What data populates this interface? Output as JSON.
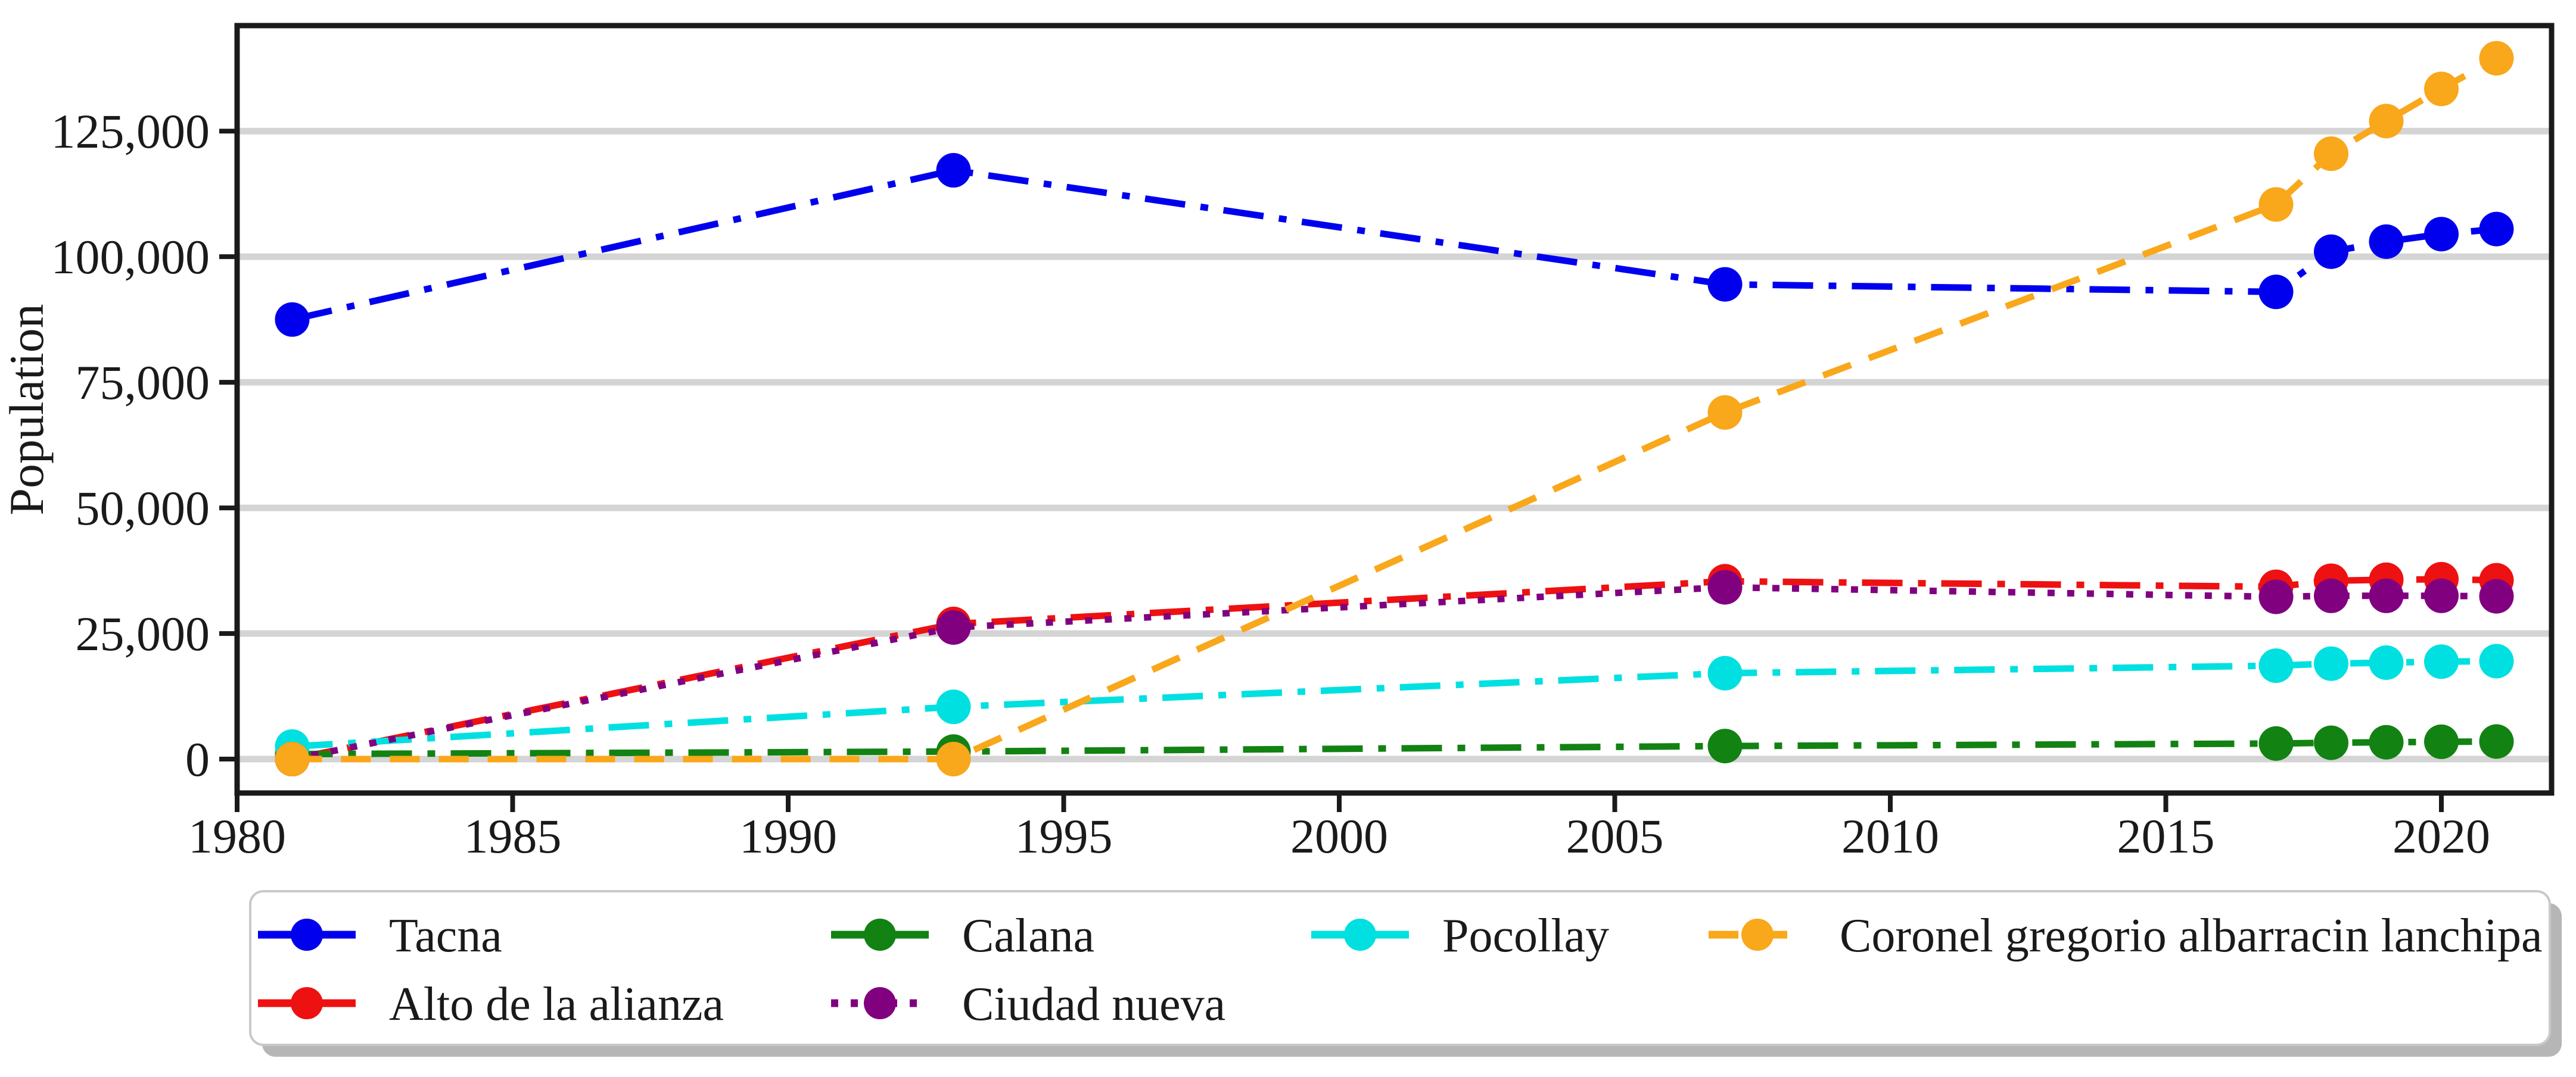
{
  "chart_data": {
    "type": "line",
    "title": "",
    "xlabel": "",
    "ylabel": "Population",
    "x": [
      1981,
      1993,
      2007,
      2017,
      2018,
      2019,
      2020,
      2021
    ],
    "xlim": [
      1980,
      2022
    ],
    "ylim": [
      -6750,
      146000
    ],
    "x_ticks": [
      1980,
      1985,
      1990,
      1995,
      2000,
      2005,
      2010,
      2015,
      2020
    ],
    "x_tick_labels": [
      "1980",
      "1985",
      "1990",
      "1995",
      "2000",
      "2005",
      "2010",
      "2015",
      "2020"
    ],
    "y_ticks": [
      0,
      25000,
      50000,
      75000,
      100000,
      125000
    ],
    "y_tick_labels": [
      "0",
      "25,000",
      "50,000",
      "75,000",
      "100,000",
      "125,000"
    ],
    "grid": "horizontal-only",
    "grid_color": "#d4d4d4",
    "spine_color": "#1a1a1a",
    "legend_position": "bottom",
    "series": [
      {
        "name": "Tacna",
        "color": "#0000EE",
        "linestyle": "dashdot",
        "values": [
          87500,
          117200,
          94500,
          93000,
          101000,
          103000,
          104500,
          105500
        ]
      },
      {
        "name": "Alto de la alianza",
        "color": "#EE1111",
        "linestyle": "dashdot",
        "values": [
          0,
          26900,
          35400,
          34300,
          35500,
          35700,
          35800,
          35600
        ]
      },
      {
        "name": "Calana",
        "color": "#128212",
        "linestyle": "dashdot",
        "values": [
          1000,
          1500,
          2600,
          3100,
          3250,
          3350,
          3450,
          3500
        ]
      },
      {
        "name": "Pocollay",
        "color": "#00E0E0",
        "linestyle": "dashdot",
        "values": [
          2500,
          10400,
          17100,
          18600,
          19000,
          19200,
          19400,
          19500
        ]
      },
      {
        "name": "Ciudad nueva",
        "color": "#800080",
        "linestyle": "dotted",
        "values": [
          0,
          26200,
          34200,
          32300,
          32500,
          32500,
          32500,
          32400
        ]
      },
      {
        "name": "Coronel gregorio albarracin lanchipa",
        "color": "#F9A71B",
        "linestyle": "dashed",
        "values": [
          0,
          0,
          69000,
          110400,
          120500,
          127000,
          133400,
          139500
        ]
      }
    ],
    "legend_entries": [
      {
        "label": "Tacna",
        "series": "Tacna",
        "linestyle": "solid",
        "row": 0,
        "col": 0
      },
      {
        "label": "Alto de la alianza",
        "series": "Alto de la alianza",
        "linestyle": "solid",
        "row": 1,
        "col": 0
      },
      {
        "label": "Calana",
        "series": "Calana",
        "linestyle": "solid",
        "row": 0,
        "col": 1
      },
      {
        "label": "Ciudad nueva",
        "series": "Ciudad nueva",
        "linestyle": "dotted",
        "row": 1,
        "col": 1
      },
      {
        "label": "Pocollay",
        "series": "Pocollay",
        "linestyle": "solid",
        "row": 0,
        "col": 2
      },
      {
        "label": "Coronel gregorio albarracin lanchipa",
        "series": "Coronel gregorio albarracin lanchipa",
        "linestyle": "dashed",
        "row": 0,
        "col": 3
      }
    ]
  }
}
